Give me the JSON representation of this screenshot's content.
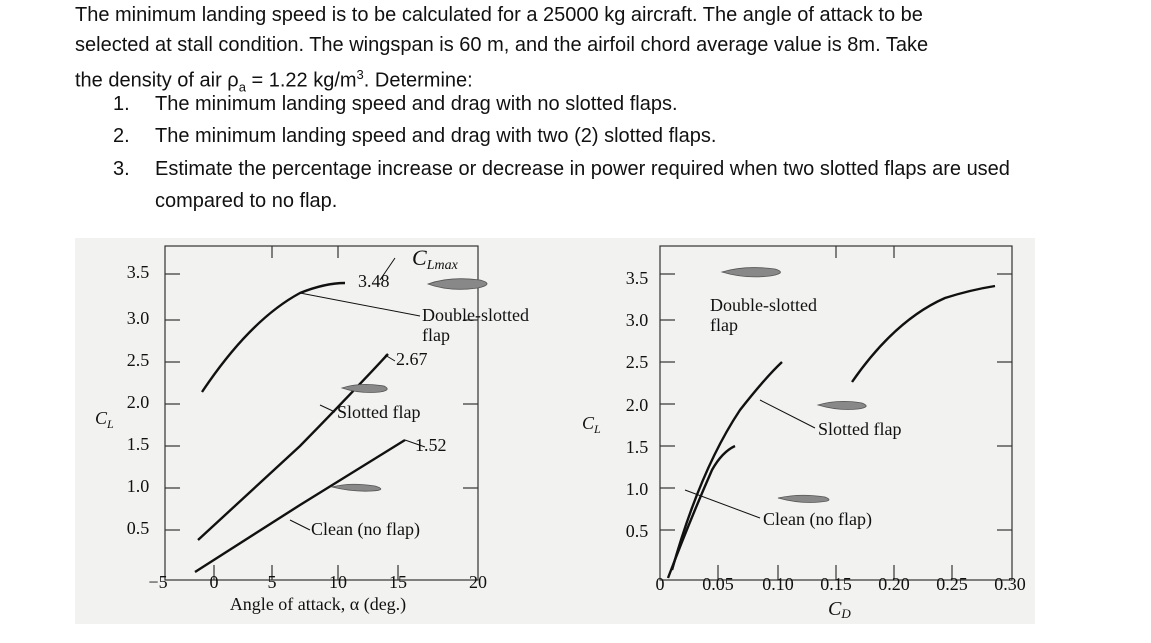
{
  "paragraph": {
    "line1": "The minimum landing speed is to be calculated for a 25000 kg aircraft. The angle of attack to be",
    "line2": "selected at stall condition. The wingspan is 60 m, and the airfoil chord average value is 8m. Take",
    "line3": {
      "before": "the density of air ρ",
      "subscript": "a",
      "middle": " = 1.22 kg/m",
      "superscript": "3",
      "after": ". Determine:"
    }
  },
  "list": [
    {
      "number": "1.",
      "text": "The minimum landing speed and drag with no slotted flaps."
    },
    {
      "number": "2.",
      "text": "The minimum landing speed and drag with two (2) slotted flaps."
    },
    {
      "number": "3.",
      "text": "Estimate the percentage increase or decrease in power required when two slotted flaps are used compared to no flap."
    }
  ],
  "figure": {
    "left_chart": {
      "y_axis_label": {
        "main": "C",
        "sub": "L"
      },
      "y_tick_labels": [
        "3.5",
        "3.0",
        "2.5",
        "2.0",
        "1.5",
        "1.0",
        "0.5"
      ],
      "x_tick_labels": [
        "−5",
        "0",
        "5",
        "10",
        "15",
        "20"
      ],
      "x_axis_label": "Angle of attack, α (deg.)",
      "clmax_label": {
        "main": "C",
        "sub": "Lmax"
      },
      "annotations": [
        "3.48",
        "Double-slotted",
        "flap",
        "2.67",
        "Slotted flap",
        "1.52",
        "Clean (no flap)"
      ]
    },
    "right_chart": {
      "y_axis_label": {
        "main": "C",
        "sub": "L"
      },
      "y_tick_labels": [
        "3.5",
        "3.0",
        "2.5",
        "2.0",
        "1.5",
        "1.0",
        "0.5"
      ],
      "x_tick_labels": [
        "0",
        "0.05",
        "0.10",
        "0.15",
        "0.20",
        "0.25",
        "0.30"
      ],
      "x_axis_label": {
        "main": "C",
        "sub": "D"
      },
      "annotations": [
        "Double-slotted",
        "flap",
        "Slotted flap",
        "Clean (no flap)"
      ]
    }
  }
}
